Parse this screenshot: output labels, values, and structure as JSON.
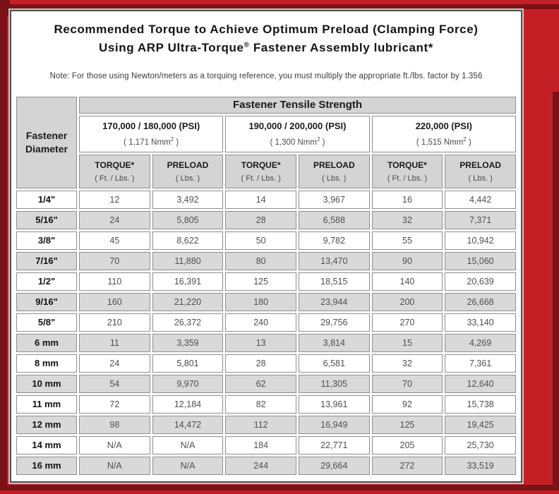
{
  "colors": {
    "frame_red": "#c32026",
    "frame_dark_red": "#7b1217",
    "panel_border": "#4e4e4e",
    "header_gray": "#d4d4d4",
    "stripe_gray": "#d9d9d9",
    "cell_border": "#8e8e8e"
  },
  "title": {
    "line1": "Recommended Torque to Achieve Optimum Preload (Clamping Force)",
    "line2_pre": "Using ARP Ultra-Torque",
    "line2_sup": "®",
    "line2_post": " Fastener Assembly lubricant*"
  },
  "note": "Note: For those using Newton/meters as a torquing reference, you must multiply the appropriate ft./lbs. factor by 1.356",
  "chart_data": {
    "type": "table",
    "title": "Recommended Torque to Achieve Optimum Preload (Clamping Force) Using ARP Ultra-Torque® Fastener Assembly lubricant*",
    "tensile_header": "Fastener Tensile Strength",
    "corner_header": {
      "line1": "Fastener",
      "line2": "Diameter"
    },
    "psi_groups": [
      {
        "psi": "170,000 / 180,000 (PSI)",
        "nmm_pre": "( 1,171 Nmm",
        "nmm_sup": "2",
        "nmm_post": " )"
      },
      {
        "psi": "190,000 / 200,000 (PSI)",
        "nmm_pre": "( 1,300 Nmm",
        "nmm_sup": "2",
        "nmm_post": " )"
      },
      {
        "psi": "220,000 (PSI)",
        "nmm_pre": "( 1,515 Nmm",
        "nmm_sup": "2",
        "nmm_post": " )"
      }
    ],
    "sub_headers": [
      {
        "label": "TORQUE*",
        "unit": "( Ft. / Lbs. )"
      },
      {
        "label": "PRELOAD",
        "unit": "( Lbs. )"
      },
      {
        "label": "TORQUE*",
        "unit": "( Ft. / Lbs. )"
      },
      {
        "label": "PRELOAD",
        "unit": "( Lbs. )"
      },
      {
        "label": "TORQUE*",
        "unit": "( Ft. / Lbs. )"
      },
      {
        "label": "PRELOAD",
        "unit": "( Lbs. )"
      }
    ],
    "rows": [
      {
        "diameter": "1/4\"",
        "values": [
          "12",
          "3,492",
          "14",
          "3,967",
          "16",
          "4,442"
        ]
      },
      {
        "diameter": "5/16\"",
        "values": [
          "24",
          "5,805",
          "28",
          "6,588",
          "32",
          "7,371"
        ]
      },
      {
        "diameter": "3/8\"",
        "values": [
          "45",
          "8,622",
          "50",
          "9,782",
          "55",
          "10,942"
        ]
      },
      {
        "diameter": "7/16\"",
        "values": [
          "70",
          "11,880",
          "80",
          "13,470",
          "90",
          "15,060"
        ]
      },
      {
        "diameter": "1/2\"",
        "values": [
          "110",
          "16,391",
          "125",
          "18,515",
          "140",
          "20,639"
        ]
      },
      {
        "diameter": "9/16\"",
        "values": [
          "160",
          "21,220",
          "180",
          "23,944",
          "200",
          "26,668"
        ]
      },
      {
        "diameter": "5/8\"",
        "values": [
          "210",
          "26,372",
          "240",
          "29,756",
          "270",
          "33,140"
        ]
      },
      {
        "diameter": "6 mm",
        "values": [
          "11",
          "3,359",
          "13",
          "3,814",
          "15",
          "4,269"
        ]
      },
      {
        "diameter": "8 mm",
        "values": [
          "24",
          "5,801",
          "28",
          "6,581",
          "32",
          "7,361"
        ]
      },
      {
        "diameter": "10 mm",
        "values": [
          "54",
          "9,970",
          "62",
          "11,305",
          "70",
          "12,640"
        ]
      },
      {
        "diameter": "11 mm",
        "values": [
          "72",
          "12,184",
          "82",
          "13,961",
          "92",
          "15,738"
        ]
      },
      {
        "diameter": "12 mm",
        "values": [
          "98",
          "14,472",
          "112",
          "16,949",
          "125",
          "19,425"
        ]
      },
      {
        "diameter": "14 mm",
        "values": [
          "N/A",
          "N/A",
          "184",
          "22,771",
          "205",
          "25,730"
        ]
      },
      {
        "diameter": "16 mm",
        "values": [
          "N/A",
          "N/A",
          "244",
          "29,664",
          "272",
          "33,519"
        ]
      }
    ]
  }
}
